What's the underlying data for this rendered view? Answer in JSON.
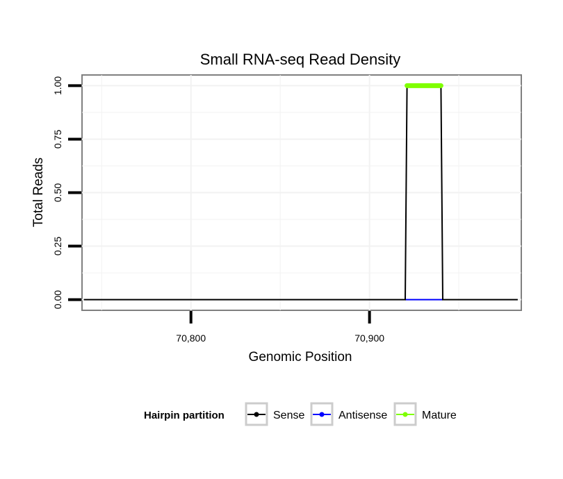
{
  "chart_data": {
    "type": "line",
    "title": "Small RNA-seq Read Density",
    "xlabel": "Genomic Position",
    "ylabel": "Total Reads",
    "xlim": [
      70739,
      70985
    ],
    "ylim": [
      -0.05,
      1.05
    ],
    "x_ticks": [
      70800,
      70900
    ],
    "x_tick_labels": [
      "70,800",
      "70,900"
    ],
    "y_ticks": [
      0,
      0.25,
      0.5,
      0.75,
      1
    ],
    "y_tick_labels": [
      "0.00",
      "0.25",
      "0.50",
      "0.75",
      "1.00"
    ],
    "grid": true,
    "legend_position": "bottom",
    "legend_title": "Hairpin partition",
    "series": [
      {
        "name": "Sense",
        "color": "#000000",
        "x": [
          70740,
          70920,
          70921,
          70940,
          70941,
          70983
        ],
        "y": [
          0,
          0,
          1,
          1,
          0,
          0
        ]
      },
      {
        "name": "Antisense",
        "color": "#0000ff",
        "x": [
          70920,
          70941
        ],
        "y": [
          0,
          0
        ]
      },
      {
        "name": "Mature",
        "color": "#7fff00",
        "x": [
          70921,
          70940
        ],
        "y": [
          1,
          1
        ]
      }
    ]
  }
}
